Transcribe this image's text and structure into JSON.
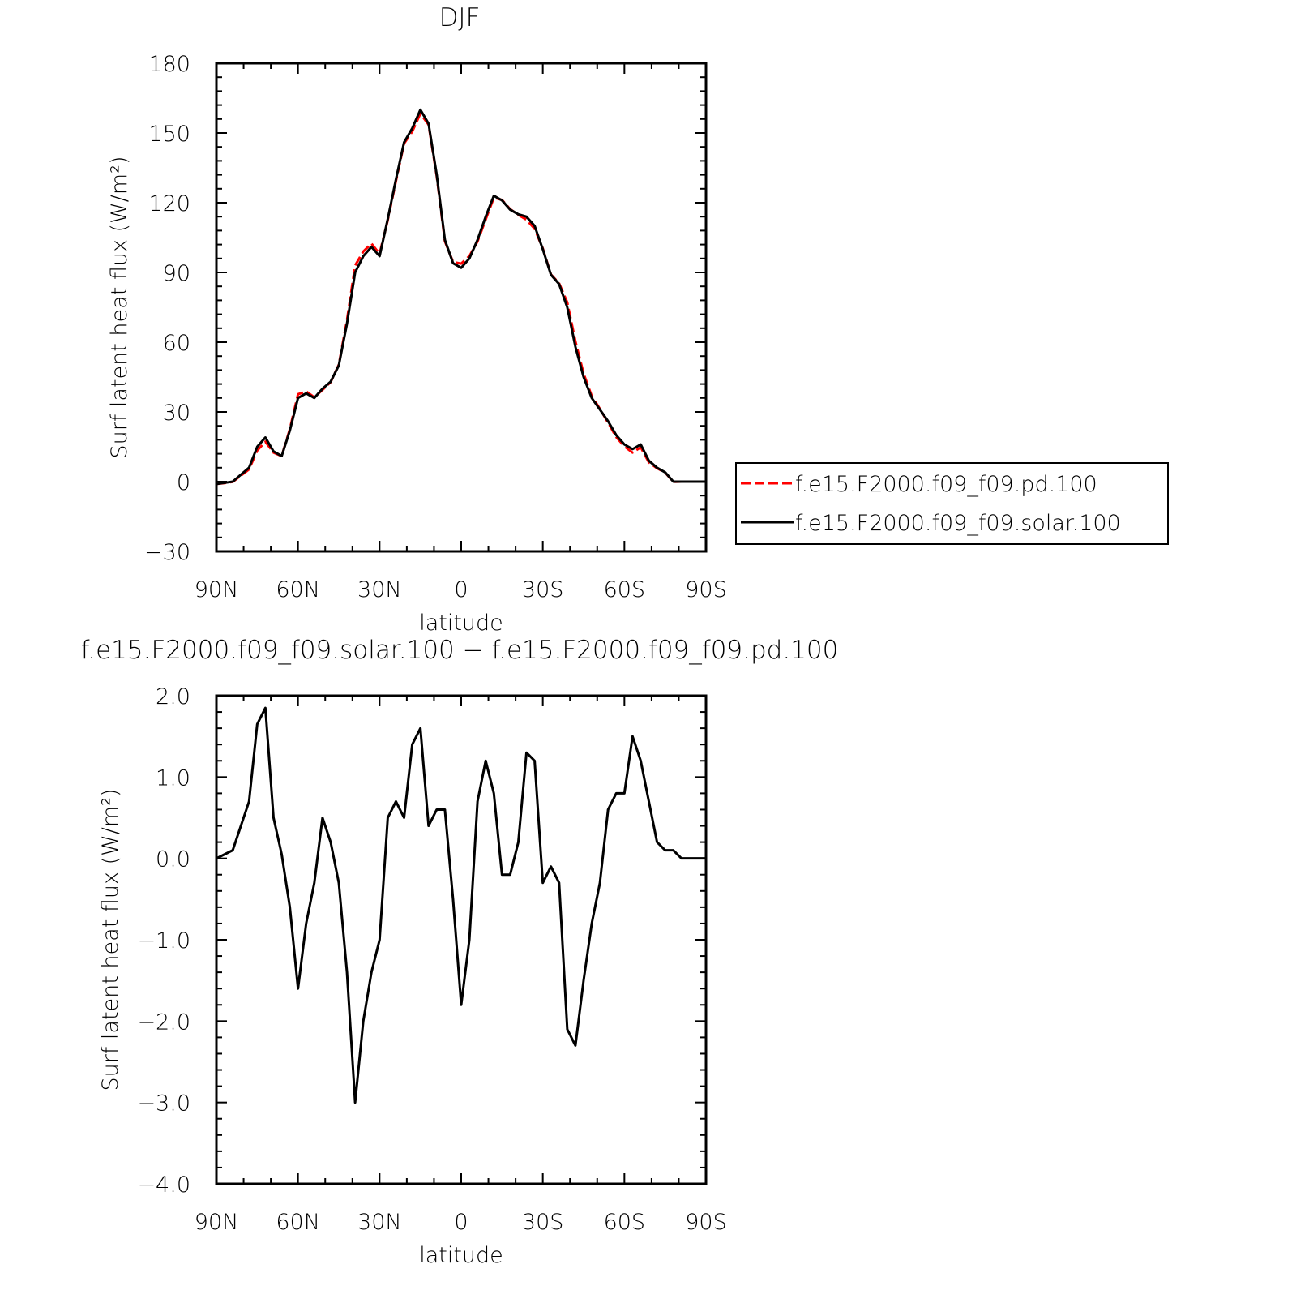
{
  "chart_data": [
    {
      "type": "line",
      "title": "DJF",
      "x_label": "latitude",
      "y_label": "Surf latent heat flux (W/m²)",
      "x": [
        90,
        87,
        84,
        81,
        78,
        75,
        72,
        69,
        66,
        63,
        60,
        57,
        54,
        51,
        48,
        45,
        42,
        39,
        36,
        33,
        30,
        27,
        24,
        21,
        18,
        15,
        12,
        9,
        6,
        3,
        0,
        -3,
        -6,
        -9,
        -12,
        -15,
        -18,
        -21,
        -24,
        -27,
        -30,
        -33,
        -36,
        -39,
        -42,
        -45,
        -48,
        -51,
        -54,
        -57,
        -60,
        -63,
        -66,
        -69,
        -72,
        -75,
        -78,
        -81,
        -84,
        -87,
        -90
      ],
      "xlim": [
        90,
        -90
      ],
      "xticks": [
        {
          "value": 90,
          "label": "90N"
        },
        {
          "value": 60,
          "label": "60N"
        },
        {
          "value": 30,
          "label": "30N"
        },
        0,
        {
          "value": -30,
          "label": "30S"
        },
        {
          "value": -60,
          "label": "60S"
        },
        {
          "value": -90,
          "label": "90S"
        }
      ],
      "ylim": [
        -30,
        180
      ],
      "yticks": [
        {
          "value": -30,
          "label": "−30"
        },
        0,
        30,
        60,
        90,
        120,
        150,
        180
      ],
      "legend": "right",
      "series": [
        {
          "name": "f.e15.F2000.f09_f09.pd.100",
          "color": "#ff0000",
          "style": "dashed",
          "values": [
            -1,
            -0.6,
            -0.1,
            2.6,
            5.3,
            13.4,
            17.2,
            12.5,
            11,
            22.6,
            37.6,
            38.8,
            36.3,
            39.5,
            42.8,
            50.3,
            69.4,
            93,
            99,
            102.4,
            98,
            112.5,
            129.3,
            145.5,
            150.6,
            158.4,
            153.6,
            131.4,
            103.4,
            94.5,
            93.8,
            97,
            103.3,
            112.8,
            122.2,
            121.2,
            117.2,
            114.8,
            112.7,
            108.8,
            100.3,
            89.1,
            85.3,
            77.1,
            60.3,
            46.5,
            36.8,
            31.3,
            25.4,
            19.2,
            15.2,
            12.5,
            14.8,
            8.3,
            5.8,
            3.9,
            -0.1,
            0,
            0,
            0,
            0
          ]
        },
        {
          "name": "f.e15.F2000.f09_f09.solar.100",
          "color": "#000000",
          "style": "solid",
          "values": [
            -1,
            -0.5,
            0,
            3,
            6,
            15,
            19,
            13,
            11,
            22,
            36,
            38,
            36,
            40,
            43,
            50,
            68,
            90,
            97,
            101,
            97,
            113,
            130,
            146,
            152,
            160,
            154,
            132,
            104,
            94,
            92,
            96,
            104,
            114,
            123,
            121,
            117,
            115,
            114,
            110,
            100,
            89,
            85,
            75,
            58,
            45,
            36,
            31,
            26,
            20,
            16,
            14,
            16,
            9,
            6,
            4,
            0,
            0,
            0,
            0,
            0
          ]
        }
      ]
    },
    {
      "type": "line",
      "title": "f.e15.F2000.f09_f09.solar.100 − f.e15.F2000.f09_f09.pd.100",
      "x_label": "latitude",
      "y_label": "Surf latent heat flux (W/m²)",
      "x": [
        90,
        87,
        84,
        81,
        78,
        75,
        72,
        69,
        66,
        63,
        60,
        57,
        54,
        51,
        48,
        45,
        42,
        39,
        36,
        33,
        30,
        27,
        24,
        21,
        18,
        15,
        12,
        9,
        6,
        3,
        0,
        -3,
        -6,
        -9,
        -12,
        -15,
        -18,
        -21,
        -24,
        -27,
        -30,
        -33,
        -36,
        -39,
        -42,
        -45,
        -48,
        -51,
        -54,
        -57,
        -60,
        -63,
        -66,
        -69,
        -72,
        -75,
        -78,
        -81,
        -84,
        -87,
        -90
      ],
      "xlim": [
        90,
        -90
      ],
      "xticks": [
        {
          "value": 90,
          "label": "90N"
        },
        {
          "value": 60,
          "label": "60N"
        },
        {
          "value": 30,
          "label": "30N"
        },
        0,
        {
          "value": -30,
          "label": "30S"
        },
        {
          "value": -60,
          "label": "60S"
        },
        {
          "value": -90,
          "label": "90S"
        }
      ],
      "ylim": [
        -4,
        2
      ],
      "yticks": [
        {
          "value": -4,
          "label": "−4.0"
        },
        {
          "value": -3,
          "label": "−3.0"
        },
        {
          "value": -2,
          "label": "−2.0"
        },
        {
          "value": -1,
          "label": "−1.0"
        },
        {
          "value": 0,
          "label": "0.0"
        },
        {
          "value": 1,
          "label": "1.0"
        },
        {
          "value": 2,
          "label": "2.0"
        }
      ],
      "series": [
        {
          "color": "#000000",
          "style": "solid",
          "values": [
            0,
            0.05,
            0.1,
            0.4,
            0.7,
            1.65,
            1.85,
            0.5,
            0.05,
            -0.6,
            -1.6,
            -0.8,
            -0.3,
            0.5,
            0.2,
            -0.3,
            -1.4,
            -3.0,
            -2.0,
            -1.4,
            -1.0,
            0.5,
            0.7,
            0.5,
            1.4,
            1.6,
            0.4,
            0.6,
            0.6,
            -0.5,
            -1.8,
            -1.0,
            0.7,
            1.2,
            0.8,
            -0.2,
            -0.2,
            0.2,
            1.3,
            1.2,
            -0.3,
            -0.1,
            -0.3,
            -2.1,
            -2.3,
            -1.5,
            -0.8,
            -0.3,
            0.6,
            0.8,
            0.8,
            1.5,
            1.2,
            0.7,
            0.2,
            0.1,
            0.1,
            0,
            0,
            0,
            0
          ]
        }
      ]
    }
  ]
}
